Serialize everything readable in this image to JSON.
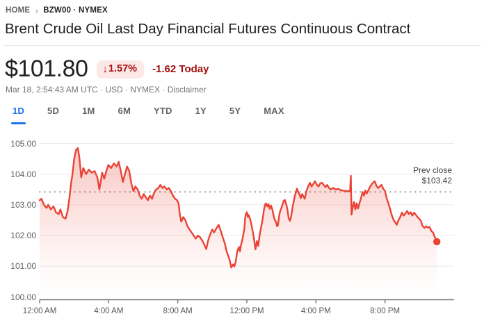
{
  "breadcrumb": {
    "home": "HOME",
    "separator": "›",
    "symbol": "BZW00 · NYMEX"
  },
  "title": "Brent Crude Oil Last Day Financial Futures Continuous Contract",
  "price": {
    "value": "$101.80",
    "change_arrow": "↓",
    "change_percent": "1.57%",
    "change_absolute": "-1.62 Today",
    "badge_bg": "#fce8e6",
    "change_color": "#a50e0e"
  },
  "meta": {
    "line_prefix": "Mar 18, 2:54:43 AM UTC · USD · NYMEX · ",
    "disclaimer": "Disclaimer"
  },
  "tabs": {
    "items": [
      {
        "label": "1D",
        "active": true
      },
      {
        "label": "5D",
        "active": false
      },
      {
        "label": "1M",
        "active": false
      },
      {
        "label": "6M",
        "active": false
      },
      {
        "label": "YTD",
        "active": false
      },
      {
        "label": "1Y",
        "active": false
      },
      {
        "label": "5Y",
        "active": false
      },
      {
        "label": "MAX",
        "active": false
      }
    ]
  },
  "chart_data": {
    "type": "line",
    "line_color": "#ea4335",
    "grid_color": "#ebebeb",
    "axis_color": "#70757a",
    "x_axis": {
      "labels": [
        "12:00 AM",
        "4:00 AM",
        "8:00 AM",
        "12:00 PM",
        "4:00 PM",
        "8:00 PM"
      ],
      "hours": [
        0,
        4,
        8,
        12,
        16,
        20
      ],
      "range_hours": [
        0,
        24
      ]
    },
    "y_axis": {
      "ticks": [
        {
          "value": 100,
          "label": "100.00"
        },
        {
          "value": 101,
          "label": "101.00"
        },
        {
          "value": 102,
          "label": "102.00"
        },
        {
          "value": 103,
          "label": "103.00"
        },
        {
          "value": 104,
          "label": "104.00"
        },
        {
          "value": 105,
          "label": "105.00"
        }
      ],
      "range": [
        100,
        105
      ]
    },
    "prev_close": {
      "label": "Prev close",
      "value_label": "$103.42",
      "value": 103.42
    },
    "last_point": {
      "hour": 23.0,
      "price": 101.8
    },
    "points": [
      [
        0.0,
        103.15
      ],
      [
        0.1,
        103.2
      ],
      [
        0.25,
        103.0
      ],
      [
        0.4,
        102.9
      ],
      [
        0.5,
        103.0
      ],
      [
        0.65,
        102.85
      ],
      [
        0.8,
        102.95
      ],
      [
        0.95,
        102.75
      ],
      [
        1.1,
        102.7
      ],
      [
        1.2,
        102.85
      ],
      [
        1.35,
        102.6
      ],
      [
        1.5,
        102.55
      ],
      [
        1.62,
        102.8
      ],
      [
        1.72,
        103.2
      ],
      [
        1.82,
        103.7
      ],
      [
        1.9,
        104.0
      ],
      [
        2.0,
        104.5
      ],
      [
        2.1,
        104.78
      ],
      [
        2.21,
        104.85
      ],
      [
        2.3,
        104.55
      ],
      [
        2.41,
        103.9
      ],
      [
        2.53,
        104.2
      ],
      [
        2.69,
        104.0
      ],
      [
        2.85,
        104.15
      ],
      [
        3.02,
        104.05
      ],
      [
        3.18,
        104.1
      ],
      [
        3.34,
        103.9
      ],
      [
        3.46,
        103.5
      ],
      [
        3.62,
        104.05
      ],
      [
        3.74,
        103.85
      ],
      [
        3.86,
        104.1
      ],
      [
        3.98,
        104.3
      ],
      [
        4.14,
        104.2
      ],
      [
        4.3,
        104.35
      ],
      [
        4.46,
        104.25
      ],
      [
        4.58,
        104.4
      ],
      [
        4.7,
        104.1
      ],
      [
        4.82,
        103.75
      ],
      [
        4.94,
        104.0
      ],
      [
        5.06,
        104.25
      ],
      [
        5.19,
        104.1
      ],
      [
        5.31,
        103.7
      ],
      [
        5.43,
        103.45
      ],
      [
        5.55,
        103.6
      ],
      [
        5.67,
        103.5
      ],
      [
        5.79,
        103.3
      ],
      [
        5.91,
        103.2
      ],
      [
        6.03,
        103.35
      ],
      [
        6.15,
        103.25
      ],
      [
        6.27,
        103.15
      ],
      [
        6.39,
        103.3
      ],
      [
        6.51,
        103.2
      ],
      [
        6.63,
        103.4
      ],
      [
        6.75,
        103.5
      ],
      [
        6.87,
        103.55
      ],
      [
        6.99,
        103.65
      ],
      [
        7.11,
        103.55
      ],
      [
        7.23,
        103.6
      ],
      [
        7.36,
        103.5
      ],
      [
        7.48,
        103.55
      ],
      [
        7.6,
        103.45
      ],
      [
        7.72,
        103.3
      ],
      [
        7.84,
        103.2
      ],
      [
        7.96,
        103.15
      ],
      [
        8.04,
        103.05
      ],
      [
        8.12,
        102.7
      ],
      [
        8.2,
        102.45
      ],
      [
        8.32,
        102.6
      ],
      [
        8.44,
        102.5
      ],
      [
        8.56,
        102.3
      ],
      [
        8.68,
        102.2
      ],
      [
        8.8,
        102.1
      ],
      [
        8.92,
        102.0
      ],
      [
        9.04,
        101.9
      ],
      [
        9.16,
        102.0
      ],
      [
        9.28,
        101.95
      ],
      [
        9.45,
        101.8
      ],
      [
        9.65,
        101.56
      ],
      [
        9.75,
        101.82
      ],
      [
        9.85,
        102.0
      ],
      [
        10.0,
        102.2
      ],
      [
        10.1,
        102.1
      ],
      [
        10.25,
        102.25
      ],
      [
        10.37,
        102.35
      ],
      [
        10.5,
        102.13
      ],
      [
        10.6,
        101.95
      ],
      [
        10.72,
        101.75
      ],
      [
        10.82,
        101.5
      ],
      [
        10.9,
        101.37
      ],
      [
        11.0,
        101.2
      ],
      [
        11.1,
        100.96
      ],
      [
        11.2,
        101.06
      ],
      [
        11.27,
        100.99
      ],
      [
        11.35,
        101.14
      ],
      [
        11.45,
        101.5
      ],
      [
        11.55,
        101.63
      ],
      [
        11.6,
        101.48
      ],
      [
        11.65,
        101.66
      ],
      [
        11.75,
        101.9
      ],
      [
        11.85,
        102.2
      ],
      [
        11.9,
        102.56
      ],
      [
        11.95,
        102.72
      ],
      [
        12.0,
        102.76
      ],
      [
        12.06,
        102.6
      ],
      [
        12.1,
        102.67
      ],
      [
        12.18,
        102.55
      ],
      [
        12.25,
        102.4
      ],
      [
        12.32,
        102.2
      ],
      [
        12.4,
        101.95
      ],
      [
        12.5,
        101.55
      ],
      [
        12.58,
        101.82
      ],
      [
        12.66,
        101.66
      ],
      [
        12.72,
        101.95
      ],
      [
        12.8,
        102.2
      ],
      [
        12.87,
        102.4
      ],
      [
        12.93,
        102.6
      ],
      [
        13.0,
        102.87
      ],
      [
        13.05,
        103.0
      ],
      [
        13.1,
        103.05
      ],
      [
        13.18,
        102.95
      ],
      [
        13.25,
        103.03
      ],
      [
        13.32,
        102.87
      ],
      [
        13.4,
        102.98
      ],
      [
        13.48,
        102.83
      ],
      [
        13.55,
        102.64
      ],
      [
        13.62,
        102.5
      ],
      [
        13.68,
        102.46
      ],
      [
        13.75,
        102.3
      ],
      [
        13.8,
        102.34
      ],
      [
        13.87,
        102.64
      ],
      [
        13.93,
        102.8
      ],
      [
        14.0,
        102.9
      ],
      [
        14.07,
        103.02
      ],
      [
        14.13,
        103.13
      ],
      [
        14.2,
        103.16
      ],
      [
        14.28,
        103.02
      ],
      [
        14.35,
        102.84
      ],
      [
        14.42,
        102.56
      ],
      [
        14.5,
        102.48
      ],
      [
        14.57,
        102.64
      ],
      [
        14.65,
        102.94
      ],
      [
        14.72,
        103.12
      ],
      [
        14.78,
        103.3
      ],
      [
        14.85,
        103.42
      ],
      [
        14.9,
        103.53
      ],
      [
        14.97,
        103.42
      ],
      [
        15.05,
        103.34
      ],
      [
        15.12,
        103.22
      ],
      [
        15.2,
        103.35
      ],
      [
        15.28,
        103.27
      ],
      [
        15.35,
        103.2
      ],
      [
        15.45,
        103.45
      ],
      [
        15.55,
        103.6
      ],
      [
        15.65,
        103.72
      ],
      [
        15.75,
        103.6
      ],
      [
        15.85,
        103.68
      ],
      [
        15.95,
        103.77
      ],
      [
        16.05,
        103.65
      ],
      [
        16.15,
        103.6
      ],
      [
        16.25,
        103.7
      ],
      [
        16.35,
        103.72
      ],
      [
        16.45,
        103.65
      ],
      [
        16.55,
        103.58
      ],
      [
        16.65,
        103.65
      ],
      [
        16.75,
        103.55
      ],
      [
        16.85,
        103.5
      ],
      [
        17.0,
        103.55
      ],
      [
        17.15,
        103.5
      ],
      [
        17.3,
        103.52
      ],
      [
        17.45,
        103.48
      ],
      [
        17.6,
        103.46
      ],
      [
        17.75,
        103.45
      ],
      [
        17.9,
        103.44
      ],
      [
        17.98,
        103.48
      ],
      [
        18.02,
        103.95
      ],
      [
        18.06,
        102.68
      ],
      [
        18.12,
        102.9
      ],
      [
        18.2,
        103.1
      ],
      [
        18.28,
        102.85
      ],
      [
        18.36,
        103.05
      ],
      [
        18.44,
        102.88
      ],
      [
        18.52,
        103.05
      ],
      [
        18.6,
        103.2
      ],
      [
        18.7,
        103.42
      ],
      [
        18.78,
        103.3
      ],
      [
        18.86,
        103.47
      ],
      [
        18.94,
        103.37
      ],
      [
        19.02,
        103.45
      ],
      [
        19.1,
        103.55
      ],
      [
        19.2,
        103.65
      ],
      [
        19.3,
        103.72
      ],
      [
        19.4,
        103.77
      ],
      [
        19.5,
        103.62
      ],
      [
        19.6,
        103.55
      ],
      [
        19.7,
        103.6
      ],
      [
        19.8,
        103.65
      ],
      [
        19.9,
        103.52
      ],
      [
        20.0,
        103.45
      ],
      [
        20.1,
        103.2
      ],
      [
        20.2,
        103.05
      ],
      [
        20.3,
        102.85
      ],
      [
        20.4,
        102.65
      ],
      [
        20.5,
        102.5
      ],
      [
        20.6,
        102.42
      ],
      [
        20.68,
        102.35
      ],
      [
        20.78,
        102.5
      ],
      [
        20.88,
        102.6
      ],
      [
        20.98,
        102.75
      ],
      [
        21.08,
        102.65
      ],
      [
        21.18,
        102.72
      ],
      [
        21.28,
        102.8
      ],
      [
        21.38,
        102.7
      ],
      [
        21.48,
        102.76
      ],
      [
        21.58,
        102.65
      ],
      [
        21.68,
        102.75
      ],
      [
        21.78,
        102.68
      ],
      [
        21.88,
        102.6
      ],
      [
        21.98,
        102.55
      ],
      [
        22.08,
        102.48
      ],
      [
        22.18,
        102.3
      ],
      [
        22.28,
        102.25
      ],
      [
        22.38,
        102.3
      ],
      [
        22.48,
        102.26
      ],
      [
        22.58,
        102.28
      ],
      [
        22.68,
        102.15
      ],
      [
        22.78,
        102.1
      ],
      [
        22.88,
        101.95
      ],
      [
        23.0,
        101.8
      ]
    ]
  }
}
